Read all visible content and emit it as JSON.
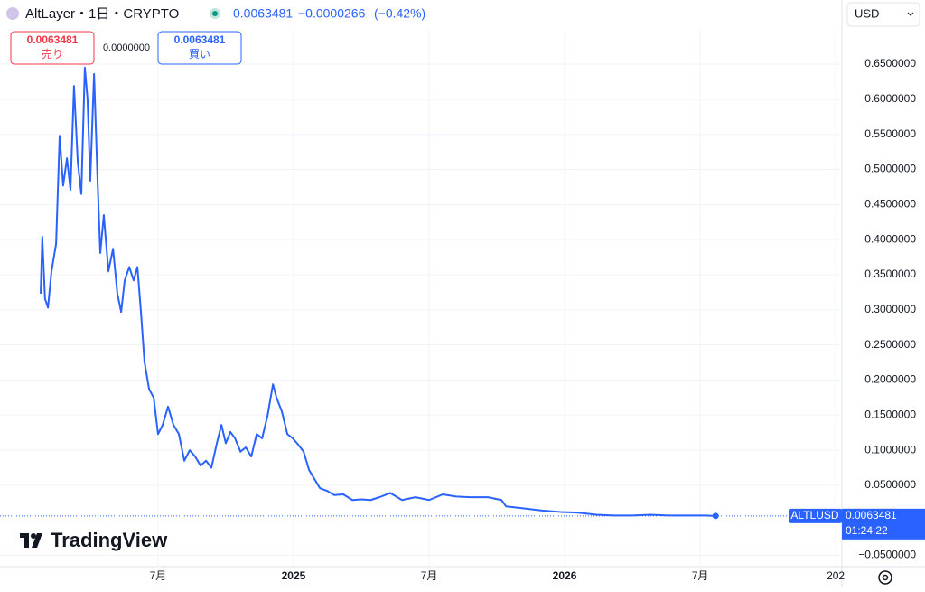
{
  "header": {
    "title": "AltLayer・1日・CRYPTO",
    "price": "0.0063481",
    "change": "−0.0000266",
    "change_pct": "(−0.42%)",
    "currency": "USD"
  },
  "trade": {
    "sell_price": "0.0063481",
    "sell_label": "売り",
    "spread": "0.0000000",
    "buy_price": "0.0063481",
    "buy_label": "買い"
  },
  "footer": {
    "brand": "TradingView"
  },
  "chart_data": {
    "type": "line",
    "series": [
      {
        "name": "ALTLUSD",
        "color": "#2962ff",
        "x": [
          2024.067,
          2024.073,
          2024.083,
          2024.094,
          2024.107,
          2024.124,
          2024.137,
          2024.15,
          2024.164,
          2024.177,
          2024.19,
          2024.204,
          2024.217,
          2024.23,
          2024.24,
          2024.25,
          2024.264,
          2024.277,
          2024.287,
          2024.3,
          2024.317,
          2024.334,
          2024.35,
          2024.364,
          2024.377,
          2024.394,
          2024.41,
          2024.424,
          2024.437,
          2024.45,
          2024.467,
          2024.484,
          2024.5,
          2024.517,
          2024.537,
          2024.557,
          2024.577,
          2024.597,
          2024.617,
          2024.637,
          2024.657,
          2024.677,
          2024.697,
          2024.717,
          2024.734,
          2024.75,
          2024.767,
          2024.784,
          2024.804,
          2024.824,
          2024.844,
          2024.864,
          2024.884,
          2024.904,
          2024.924,
          2024.937,
          2024.957,
          2024.977,
          2024.997,
          2025.017,
          2025.037,
          2025.057,
          2025.077,
          2025.097,
          2025.124,
          2025.15,
          2025.184,
          2025.217,
          2025.25,
          2025.284,
          2025.317,
          2025.357,
          2025.4,
          2025.45,
          2025.5,
          2025.55,
          2025.6,
          2025.65,
          2025.717,
          2025.767,
          2025.784,
          2025.85,
          2025.917,
          2025.984,
          2026.05,
          2026.117,
          2026.184,
          2026.25,
          2026.317,
          2026.384,
          2026.45,
          2026.517,
          2026.557
        ],
        "values": [
          0.323,
          0.404,
          0.316,
          0.303,
          0.355,
          0.394,
          0.548,
          0.477,
          0.516,
          0.471,
          0.619,
          0.51,
          0.465,
          0.645,
          0.6,
          0.484,
          0.636,
          0.484,
          0.381,
          0.435,
          0.355,
          0.387,
          0.323,
          0.297,
          0.342,
          0.361,
          0.342,
          0.361,
          0.297,
          0.226,
          0.187,
          0.175,
          0.123,
          0.136,
          0.162,
          0.136,
          0.123,
          0.085,
          0.1,
          0.091,
          0.078,
          0.085,
          0.075,
          0.11,
          0.136,
          0.11,
          0.126,
          0.117,
          0.098,
          0.104,
          0.091,
          0.123,
          0.117,
          0.149,
          0.194,
          0.175,
          0.155,
          0.123,
          0.117,
          0.108,
          0.098,
          0.072,
          0.059,
          0.046,
          0.042,
          0.036,
          0.037,
          0.029,
          0.03,
          0.029,
          0.033,
          0.039,
          0.029,
          0.033,
          0.029,
          0.037,
          0.034,
          0.033,
          0.033,
          0.029,
          0.02,
          0.017,
          0.014,
          0.012,
          0.011,
          0.008,
          0.007,
          0.007,
          0.008,
          0.007,
          0.007,
          0.007,
          0.0063481
        ]
      }
    ],
    "last_price": 0.0063481,
    "countdown": "01:24:22",
    "xlim": [
      2023.917,
      2027.023
    ],
    "xticks": [
      {
        "value": 2024.5,
        "label": "7月"
      },
      2025,
      {
        "value": 2025.5,
        "label": "7月"
      },
      2026,
      {
        "value": 2026.5,
        "label": "7月"
      },
      {
        "value": 2027,
        "label": "202"
      }
    ],
    "ylim": [
      -0.066,
      0.699
    ],
    "yticks": [
      {
        "value": 0.65,
        "label": "0.6500000"
      },
      {
        "value": 0.6,
        "label": "0.6000000"
      },
      {
        "value": 0.55,
        "label": "0.5500000"
      },
      {
        "value": 0.5,
        "label": "0.5000000"
      },
      {
        "value": 0.45,
        "label": "0.4500000"
      },
      {
        "value": 0.4,
        "label": "0.4000000"
      },
      {
        "value": 0.35,
        "label": "0.3500000"
      },
      {
        "value": 0.3,
        "label": "0.3000000"
      },
      {
        "value": 0.25,
        "label": "0.2500000"
      },
      {
        "value": 0.2,
        "label": "0.2000000"
      },
      {
        "value": 0.15,
        "label": "0.1500000"
      },
      {
        "value": 0.1,
        "label": "0.1000000"
      },
      {
        "value": 0.05,
        "label": "0.0500000"
      },
      {
        "value": -0.05,
        "label": "−0.0500000"
      }
    ],
    "grid": true
  }
}
